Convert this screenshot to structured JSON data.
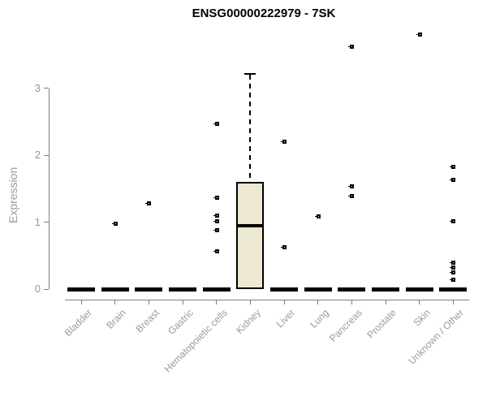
{
  "chart_data": {
    "type": "box",
    "title": "ENSG00000222979 - 7SK",
    "xlabel": "",
    "ylabel": "Expression",
    "ylim": [
      0,
      3
    ],
    "yticks": [
      0,
      1,
      2,
      3
    ],
    "grid": false,
    "legend": "none",
    "categories": [
      "Bladder",
      "Brain",
      "Breast",
      "Gastric",
      "Hematopoietic cells",
      "Kidney",
      "Liver",
      "Lung",
      "Pancreas",
      "Prostate",
      "Skin",
      "Unknown / Other"
    ],
    "boxes": [
      {
        "category": "Bladder",
        "low": 0,
        "q1": 0,
        "median": 0,
        "q3": 0,
        "high": 0,
        "outliers": []
      },
      {
        "category": "Brain",
        "low": 0,
        "q1": 0,
        "median": 0,
        "q3": 0,
        "high": 0,
        "outliers": [
          0.98
        ]
      },
      {
        "category": "Breast",
        "low": 0,
        "q1": 0,
        "median": 0,
        "q3": 0,
        "high": 0,
        "outliers": [
          1.29
        ]
      },
      {
        "category": "Gastric",
        "low": 0,
        "q1": 0,
        "median": 0,
        "q3": 0,
        "high": 0,
        "outliers": []
      },
      {
        "category": "Hematopoietic cells",
        "low": 0,
        "q1": 0,
        "median": 0,
        "q3": 0,
        "high": 0,
        "outliers": [
          2.47,
          1.37,
          1.1,
          1.02,
          0.88,
          0.57
        ]
      },
      {
        "category": "Kidney",
        "low": 0,
        "q1": 0,
        "median": 0.95,
        "q3": 1.6,
        "high": 3.21,
        "outliers": []
      },
      {
        "category": "Liver",
        "low": 0,
        "q1": 0,
        "median": 0,
        "q3": 0,
        "high": 0,
        "outliers": [
          2.21,
          0.63
        ]
      },
      {
        "category": "Lung",
        "low": 0,
        "q1": 0,
        "median": 0,
        "q3": 0,
        "high": 0,
        "outliers": [
          1.09
        ]
      },
      {
        "category": "Pancreas",
        "low": 0,
        "q1": 0,
        "median": 0,
        "q3": 0,
        "high": 0,
        "outliers": [
          3.62,
          1.54,
          1.39
        ]
      },
      {
        "category": "Prostate",
        "low": 0,
        "q1": 0,
        "median": 0,
        "q3": 0,
        "high": 0,
        "outliers": []
      },
      {
        "category": "Skin",
        "low": 0,
        "q1": 0,
        "median": 0,
        "q3": 0,
        "high": 0,
        "outliers": [
          3.81
        ]
      },
      {
        "category": "Unknown / Other",
        "low": 0,
        "q1": 0,
        "median": 0,
        "q3": 0,
        "high": 0,
        "outliers": [
          1.83,
          1.64,
          1.02,
          0.4,
          0.33,
          0.26,
          0.14
        ]
      }
    ],
    "colors": {
      "box_fill": "#ede8d1",
      "box_border": "#000000",
      "median": "#000000",
      "outlier": "#000000",
      "axis": "#7f7f7f",
      "y_tick_label": "#8f9aa8",
      "category_label": "#9a9a9a",
      "title": "#000000",
      "background": "#ffffff"
    }
  }
}
